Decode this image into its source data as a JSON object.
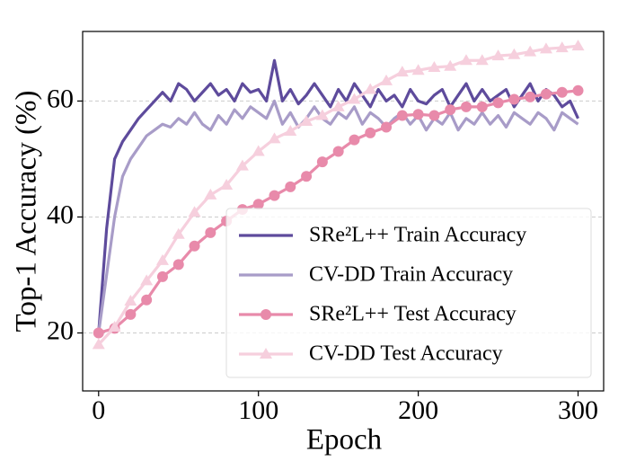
{
  "chart_data": {
    "type": "line",
    "xlabel": "Epoch",
    "ylabel": "Top-1 Accuracy (%)",
    "xlim": [
      -10,
      316
    ],
    "ylim": [
      10,
      72
    ],
    "xticks": [
      0,
      100,
      200,
      300
    ],
    "yticks": [
      20,
      40,
      60
    ],
    "grid": true,
    "legend": "lower right",
    "series": [
      {
        "name": "SRe²L++ Train Accuracy",
        "color": "#5e4b9c",
        "marker": "none",
        "x": [
          0,
          5,
          10,
          15,
          20,
          25,
          30,
          35,
          40,
          45,
          50,
          55,
          60,
          65,
          70,
          75,
          80,
          85,
          90,
          95,
          100,
          105,
          110,
          115,
          120,
          125,
          130,
          135,
          140,
          145,
          150,
          155,
          160,
          165,
          170,
          175,
          180,
          185,
          190,
          195,
          200,
          205,
          210,
          215,
          220,
          225,
          230,
          235,
          240,
          245,
          250,
          255,
          260,
          265,
          270,
          275,
          280,
          285,
          290,
          295,
          300
        ],
        "values": [
          20,
          38,
          50,
          53,
          55,
          57,
          58.5,
          60,
          61.5,
          60,
          63,
          62,
          60,
          61.5,
          63,
          61,
          62,
          60,
          63,
          61.5,
          62,
          60,
          67,
          60,
          62,
          59.5,
          61,
          63,
          61,
          59,
          62,
          60,
          63,
          61,
          59,
          62,
          60,
          61,
          59,
          62,
          60,
          59.5,
          61,
          62,
          59,
          61,
          63,
          60,
          62,
          60,
          61,
          62,
          59,
          61,
          63,
          60,
          62,
          61,
          59,
          60,
          57
        ]
      },
      {
        "name": "CV-DD Train Accuracy",
        "color": "#a89cc8",
        "marker": "none",
        "x": [
          0,
          5,
          10,
          15,
          20,
          25,
          30,
          35,
          40,
          45,
          50,
          55,
          60,
          65,
          70,
          75,
          80,
          85,
          90,
          95,
          100,
          105,
          110,
          115,
          120,
          125,
          130,
          135,
          140,
          145,
          150,
          155,
          160,
          165,
          170,
          175,
          180,
          185,
          190,
          195,
          200,
          205,
          210,
          215,
          220,
          225,
          230,
          235,
          240,
          245,
          250,
          255,
          260,
          265,
          270,
          275,
          280,
          285,
          290,
          295,
          300
        ],
        "values": [
          20,
          30,
          40,
          47,
          50,
          52,
          54,
          55,
          56,
          55.5,
          57,
          56,
          58,
          56,
          55,
          57.5,
          56,
          58.5,
          57,
          59,
          58,
          57,
          60,
          56,
          58,
          55.5,
          57,
          59,
          57,
          56,
          58,
          57,
          59,
          56,
          58,
          57,
          55.5,
          57,
          58,
          56,
          57.5,
          55,
          57,
          56,
          58,
          55,
          57,
          56,
          58,
          56,
          57.5,
          55.5,
          58,
          57,
          56,
          58,
          57,
          55,
          58,
          57,
          56
        ]
      },
      {
        "name": "SRe²L++ Test Accuracy",
        "color": "#e88aaa",
        "marker": "circle",
        "x": [
          0,
          10,
          20,
          30,
          40,
          50,
          60,
          70,
          80,
          90,
          100,
          110,
          120,
          130,
          140,
          150,
          160,
          170,
          180,
          190,
          200,
          210,
          220,
          230,
          240,
          250,
          260,
          270,
          280,
          290,
          300
        ],
        "values": [
          20,
          20.8,
          23.2,
          25.7,
          29.7,
          31.8,
          35,
          37.3,
          39.3,
          41.3,
          42.2,
          43.7,
          45.2,
          47,
          49.5,
          51.3,
          53.3,
          54.5,
          55.5,
          57.5,
          57.7,
          57.5,
          58.5,
          59,
          59,
          59.7,
          60.3,
          60.7,
          61.2,
          61.5,
          61.8
        ]
      },
      {
        "name": "CV-DD Test Accuracy",
        "color": "#f6cfdd",
        "marker": "triangle",
        "x": [
          0,
          10,
          20,
          30,
          40,
          50,
          60,
          70,
          80,
          90,
          100,
          110,
          120,
          130,
          140,
          150,
          160,
          170,
          180,
          190,
          200,
          210,
          220,
          230,
          240,
          250,
          260,
          270,
          280,
          290,
          300
        ],
        "values": [
          18,
          21,
          25.5,
          29,
          32.5,
          37,
          40.8,
          43.8,
          45.5,
          48.8,
          51.3,
          53.5,
          54.8,
          56.5,
          57.5,
          59,
          60.3,
          62,
          63.5,
          65,
          65.3,
          65.8,
          66,
          67,
          67,
          67.8,
          68,
          68.5,
          69,
          69.2,
          69.5
        ]
      }
    ]
  }
}
